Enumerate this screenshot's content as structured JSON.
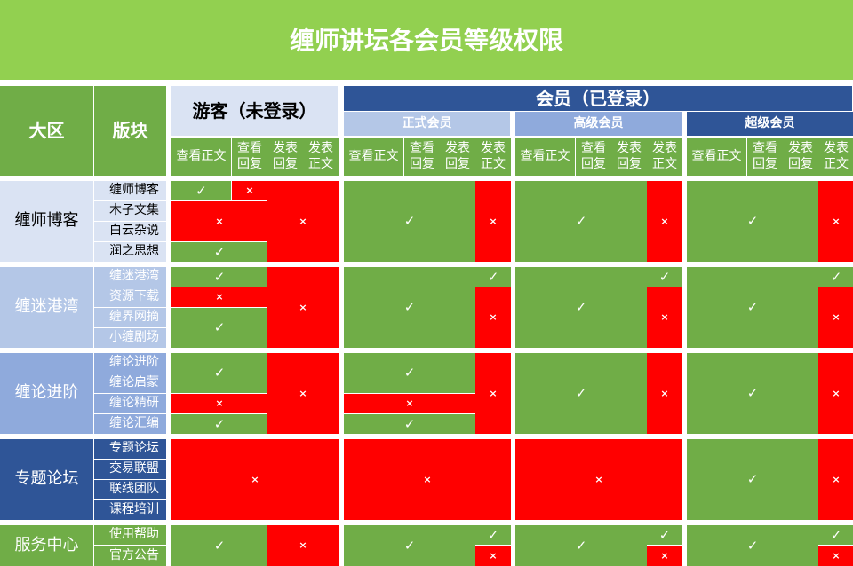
{
  "title": "缠师讲坛各会员等级权限",
  "header": {
    "region": "大区",
    "board": "版块",
    "guest": "游客（未登录）",
    "member": "会员（已登录）",
    "tiers": [
      "正式会员",
      "高级会员",
      "超级会员"
    ],
    "columns": [
      "查看正文",
      "查看\n回复",
      "发表\n回复",
      "发表\n正文"
    ]
  },
  "colors": {
    "allowed": "#70ad47",
    "denied": "#ff0000",
    "title_bg": "#92d050",
    "light": "#dae3f3",
    "mid": "#b4c7e7",
    "medium": "#8faadc",
    "dark": "#2f5597"
  },
  "symbols": {
    "allowed": "✓",
    "denied": "×"
  },
  "groups": [
    {
      "name": "缠师博客",
      "boards": [
        "缠师博客",
        "木子文集",
        "白云杂说",
        "润之思想"
      ],
      "perms": [
        [
          "allowed",
          "denied",
          "denied",
          "allowed",
          "denied"
        ],
        [
          "allowed",
          "denied"
        ],
        [
          "allowed",
          "denied"
        ],
        [
          "allowed",
          "denied"
        ]
      ]
    },
    {
      "name": "缠迷港湾",
      "boards": [
        "缠迷港湾",
        "资源下载",
        "缠界网摘",
        "小缠剧场"
      ],
      "perms": [
        [
          "allowed",
          "denied",
          "allowed",
          "denied"
        ],
        [
          "allowed",
          "allowed",
          "denied"
        ],
        [
          "allowed",
          "allowed",
          "denied"
        ],
        [
          "allowed",
          "allowed",
          "denied"
        ]
      ]
    },
    {
      "name": "缠论进阶",
      "boards": [
        "缠论进阶",
        "缠论启蒙",
        "缠论精研",
        "缠论汇编"
      ],
      "perms": [
        [
          "allowed",
          "denied",
          "allowed",
          "denied"
        ],
        [
          "allowed",
          "denied",
          "allowed",
          "denied"
        ],
        [
          "allowed",
          "denied"
        ],
        [
          "allowed",
          "denied"
        ]
      ]
    },
    {
      "name": "专题论坛",
      "boards": [
        "专题论坛",
        "交易联盟",
        "联线团队",
        "课程培训"
      ],
      "perms": [
        [
          "denied"
        ],
        [
          "denied"
        ],
        [
          "denied"
        ],
        [
          "allowed",
          "denied"
        ]
      ]
    },
    {
      "name": "服务中心",
      "boards": [
        "使用帮助",
        "官方公告"
      ],
      "perms": [
        [
          "allowed",
          "denied"
        ],
        [
          "allowed",
          "allowed",
          "denied"
        ],
        [
          "allowed",
          "allowed",
          "denied"
        ],
        [
          "allowed",
          "allowed",
          "denied"
        ]
      ]
    }
  ]
}
